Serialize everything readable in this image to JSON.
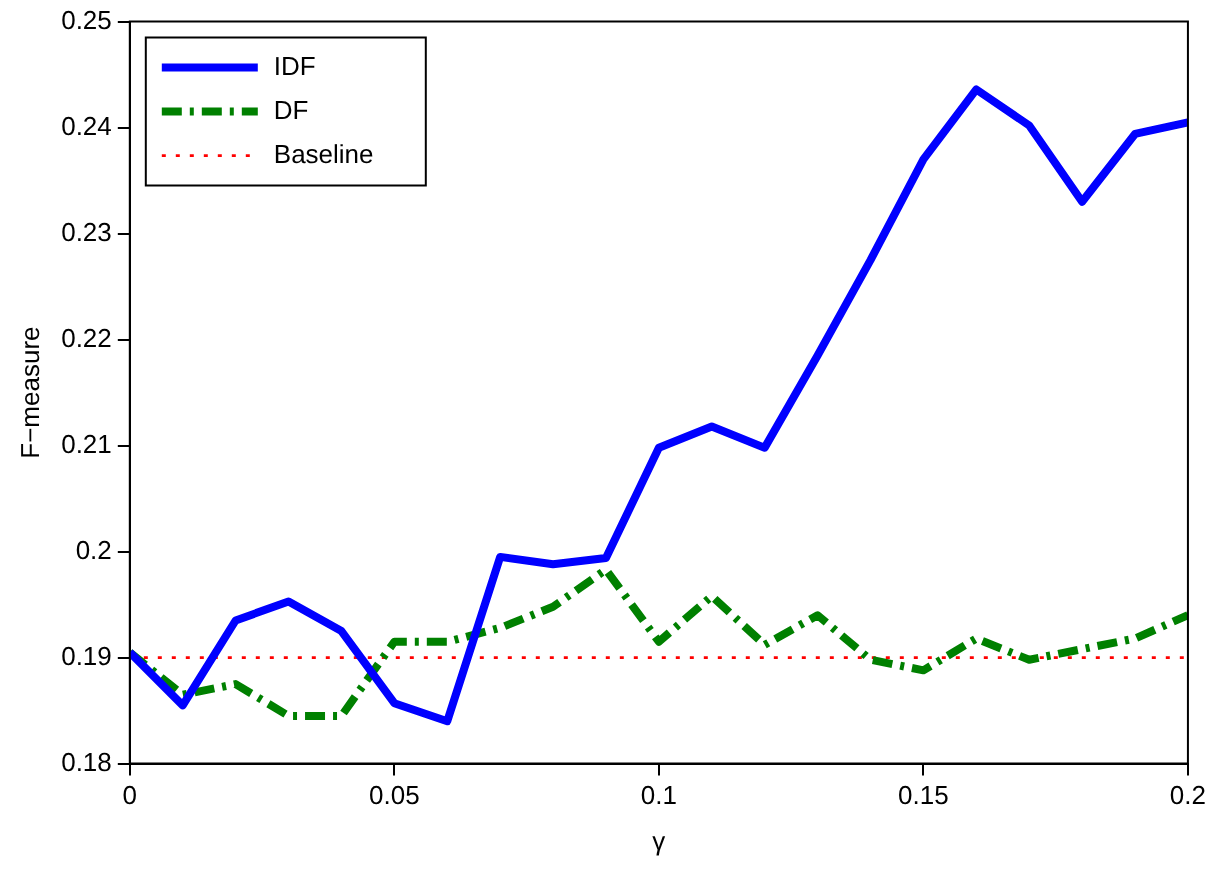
{
  "chart_data": {
    "type": "line",
    "xlabel": "γ",
    "ylabel": "F−measure",
    "x": [
      0,
      0.01,
      0.02,
      0.03,
      0.04,
      0.05,
      0.06,
      0.07,
      0.08,
      0.09,
      0.1,
      0.11,
      0.12,
      0.13,
      0.14,
      0.15,
      0.16,
      0.17,
      0.18,
      0.19,
      0.2
    ],
    "series": [
      {
        "name": "IDF",
        "color": "#0000ff",
        "line_style": "solid",
        "values": [
          0.1905,
          0.1855,
          0.1935,
          0.1953,
          0.1925,
          0.1857,
          0.184,
          0.1995,
          0.1988,
          0.1994,
          0.2098,
          0.2118,
          0.2098,
          0.2185,
          0.2275,
          0.237,
          0.2436,
          0.2402,
          0.233,
          0.2394,
          0.2405
        ]
      },
      {
        "name": "DF",
        "color": "#008000",
        "line_style": "dashed",
        "values": [
          0.1905,
          0.1865,
          0.1875,
          0.1845,
          0.1845,
          0.1915,
          0.1915,
          0.1928,
          0.1948,
          0.1983,
          0.1915,
          0.1958,
          0.1912,
          0.194,
          0.1898,
          0.1888,
          0.1918,
          0.1898,
          0.1908,
          0.1918,
          0.194
        ]
      },
      {
        "name": "Baseline",
        "color": "#ff0000",
        "line_style": "dotted",
        "values": [
          0.19,
          0.19,
          0.19,
          0.19,
          0.19,
          0.19,
          0.19,
          0.19,
          0.19,
          0.19,
          0.19,
          0.19,
          0.19,
          0.19,
          0.19,
          0.19,
          0.19,
          0.19,
          0.19,
          0.19,
          0.19
        ]
      }
    ],
    "xlim": [
      0,
      0.2
    ],
    "xticks": [
      0,
      0.05,
      0.1,
      0.15,
      0.2
    ],
    "ylim": [
      0.18,
      0.25
    ],
    "yticks": [
      0.18,
      0.19,
      0.2,
      0.21,
      0.22,
      0.23,
      0.24,
      0.25
    ],
    "grid": false,
    "legend": "top left",
    "marker": "none"
  }
}
